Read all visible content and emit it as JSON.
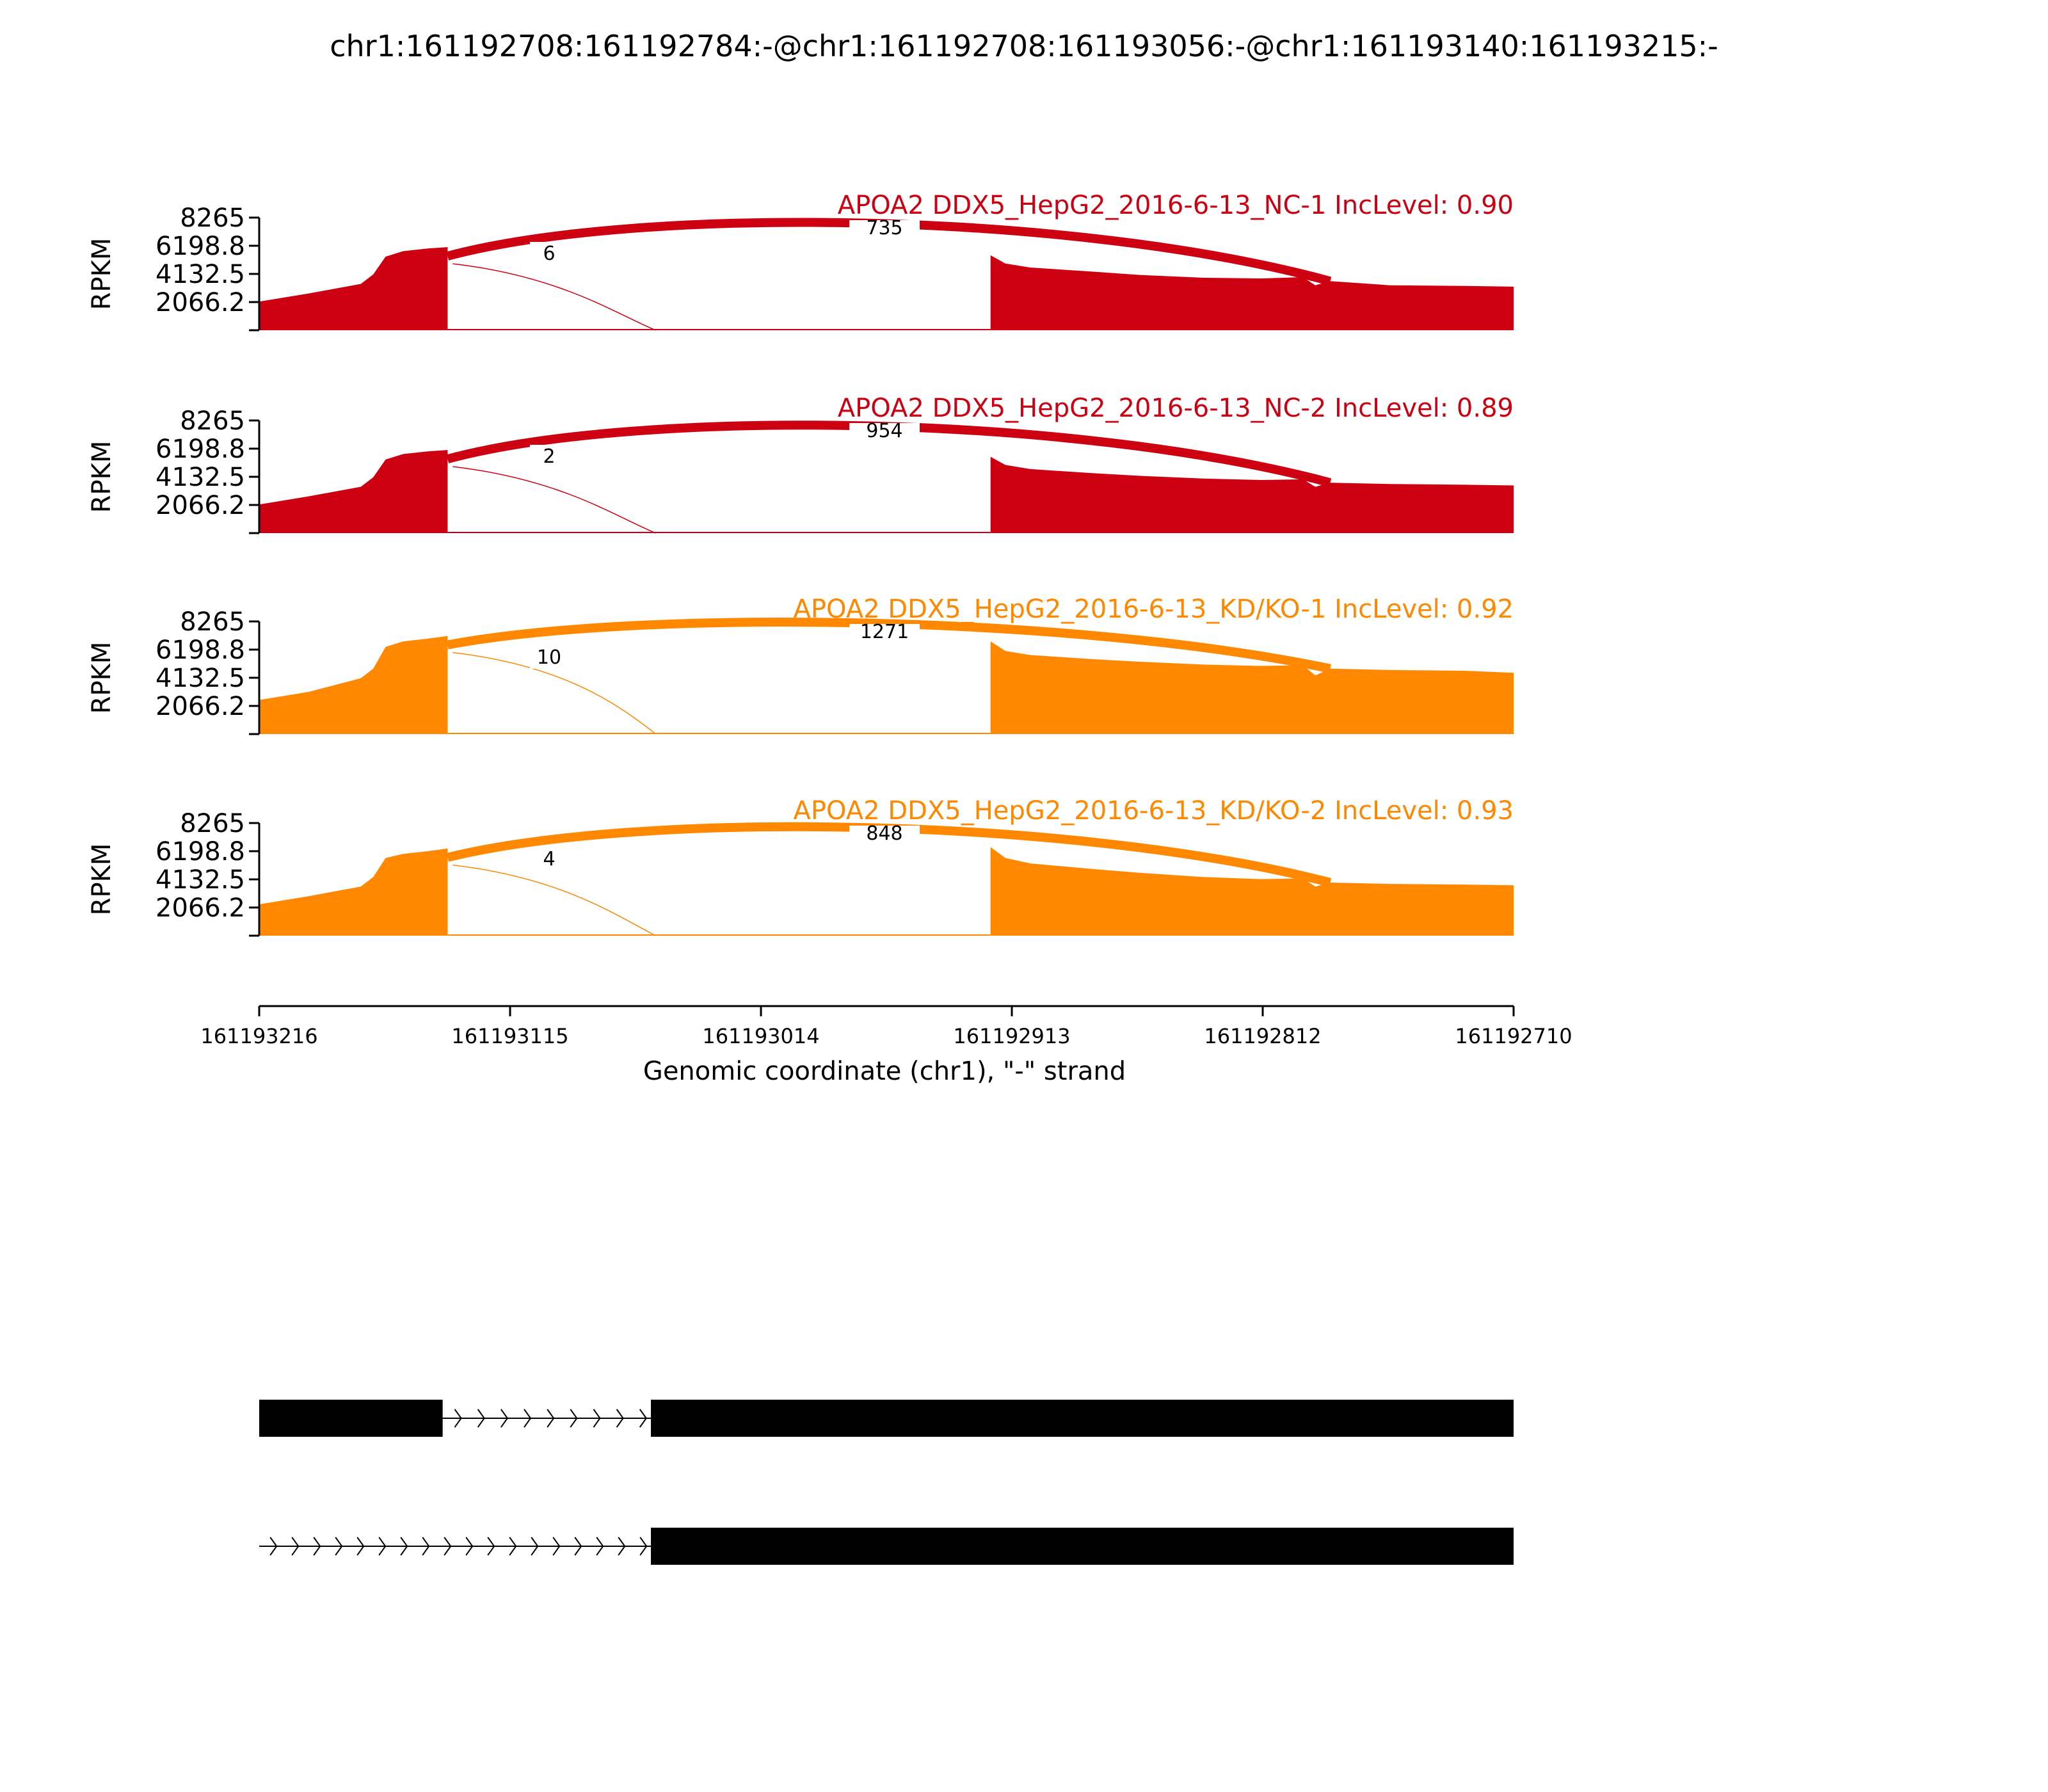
{
  "chart_data": {
    "type": "area",
    "title": "chr1:161192708:161192784:-@chr1:161192708:161193056:-@chr1:161193140:161193215:-",
    "xlabel": "Genomic coordinate (chr1), \"-\" strand",
    "ylabel": "RPKM",
    "xlim": [
      161193216,
      161192710
    ],
    "x_ticks": [
      "161193216",
      "161193115",
      "161193014",
      "161192913",
      "161192812",
      "161192710"
    ],
    "ylim": [
      0,
      8265
    ],
    "y_ticks": [
      "8265",
      "6198.8",
      "4132.5",
      "2066.2"
    ],
    "colors": {
      "NC": "#cc0011",
      "KD": "#ff8800",
      "gene": "#000000"
    },
    "exons": {
      "upstream": [
        161193216,
        161193140
      ],
      "skipped": [
        161193056,
        161192784
      ],
      "downstream": [
        161192784,
        161192710
      ]
    },
    "series": [
      {
        "name": "APOA2 DDX5_HepG2_2016-6-13_NC-1 IncLevel: 0.90",
        "group": "NC",
        "coverage": {
          "up": [
            [
              161193216,
              2100
            ],
            [
              161193196,
              2700
            ],
            [
              161193175,
              3400
            ],
            [
              161193170,
              4100
            ],
            [
              161193165,
              5400
            ],
            [
              161193158,
              5800
            ],
            [
              161193148,
              6000
            ],
            [
              161193140,
              6100
            ]
          ],
          "mid": [
            [
              161192921,
              5500
            ],
            [
              161192915,
              4900
            ],
            [
              161192905,
              4600
            ],
            [
              161192880,
              4300
            ],
            [
              161192860,
              4050
            ],
            [
              161192835,
              3850
            ],
            [
              161192812,
              3800
            ],
            [
              161192795,
              3900
            ],
            [
              161192790,
              3300
            ],
            [
              161192784,
              3600
            ],
            [
              161192760,
              3300
            ],
            [
              161192730,
              3250
            ],
            [
              161192710,
              3200
            ]
          ]
        },
        "junctions": [
          {
            "label": "735",
            "from": 161193140,
            "to": 161192784
          },
          {
            "label": "6",
            "from": 161193140,
            "to": 161193056
          }
        ]
      },
      {
        "name": "APOA2 DDX5_HepG2_2016-6-13_NC-2 IncLevel: 0.89",
        "group": "NC",
        "coverage": {
          "up": [
            [
              161193216,
              2100
            ],
            [
              161193196,
              2700
            ],
            [
              161193175,
              3400
            ],
            [
              161193170,
              4100
            ],
            [
              161193165,
              5400
            ],
            [
              161193158,
              5800
            ],
            [
              161193148,
              6000
            ],
            [
              161193140,
              6100
            ]
          ],
          "mid": [
            [
              161192921,
              5600
            ],
            [
              161192915,
              5000
            ],
            [
              161192905,
              4700
            ],
            [
              161192880,
              4400
            ],
            [
              161192860,
              4200
            ],
            [
              161192835,
              4000
            ],
            [
              161192812,
              3900
            ],
            [
              161192795,
              3950
            ],
            [
              161192790,
              3400
            ],
            [
              161192784,
              3700
            ],
            [
              161192760,
              3600
            ],
            [
              161192730,
              3550
            ],
            [
              161192710,
              3500
            ]
          ]
        },
        "junctions": [
          {
            "label": "954",
            "from": 161193140,
            "to": 161192784
          },
          {
            "label": "2",
            "from": 161193140,
            "to": 161193056
          }
        ]
      },
      {
        "name": "APOA2 DDX5_HepG2_2016-6-13_KD/KO-1 IncLevel: 0.92",
        "group": "KD",
        "coverage": {
          "up": [
            [
              161193216,
              2500
            ],
            [
              161193196,
              3100
            ],
            [
              161193175,
              4100
            ],
            [
              161193170,
              4800
            ],
            [
              161193165,
              6400
            ],
            [
              161193158,
              6800
            ],
            [
              161193148,
              7000
            ],
            [
              161193140,
              7200
            ]
          ],
          "mid": [
            [
              161192921,
              6800
            ],
            [
              161192915,
              6100
            ],
            [
              161192905,
              5800
            ],
            [
              161192880,
              5500
            ],
            [
              161192860,
              5300
            ],
            [
              161192835,
              5100
            ],
            [
              161192812,
              5000
            ],
            [
              161192795,
              5050
            ],
            [
              161192790,
              4300
            ],
            [
              161192784,
              4800
            ],
            [
              161192760,
              4700
            ],
            [
              161192730,
              4650
            ],
            [
              161192710,
              4500
            ]
          ]
        },
        "junctions": [
          {
            "label": "1271",
            "from": 161193140,
            "to": 161192784
          },
          {
            "label": "10",
            "from": 161193140,
            "to": 161193056
          }
        ]
      },
      {
        "name": "APOA2 DDX5_HepG2_2016-6-13_KD/KO-2 IncLevel: 0.93",
        "group": "KD",
        "coverage": {
          "up": [
            [
              161193216,
              2300
            ],
            [
              161193196,
              2900
            ],
            [
              161193175,
              3600
            ],
            [
              161193170,
              4300
            ],
            [
              161193165,
              5700
            ],
            [
              161193158,
              6000
            ],
            [
              161193148,
              6200
            ],
            [
              161193140,
              6400
            ]
          ],
          "mid": [
            [
              161192921,
              6500
            ],
            [
              161192915,
              5700
            ],
            [
              161192905,
              5300
            ],
            [
              161192880,
              4900
            ],
            [
              161192860,
              4600
            ],
            [
              161192835,
              4300
            ],
            [
              161192812,
              4150
            ],
            [
              161192795,
              4200
            ],
            [
              161192790,
              3600
            ],
            [
              161192784,
              3900
            ],
            [
              161192760,
              3800
            ],
            [
              161192730,
              3750
            ],
            [
              161192710,
              3700
            ]
          ]
        },
        "junctions": [
          {
            "label": "848",
            "from": 161193140,
            "to": 161192784
          },
          {
            "label": "4",
            "from": 161193140,
            "to": 161193056
          }
        ]
      }
    ],
    "isoforms": [
      {
        "exons": [
          [
            161193216,
            161193142
          ],
          [
            161193058,
            161192710
          ]
        ],
        "intron_arrows": 9
      },
      {
        "exons": [
          [
            161193058,
            161192710
          ]
        ],
        "intron_arrows": 18
      }
    ]
  }
}
